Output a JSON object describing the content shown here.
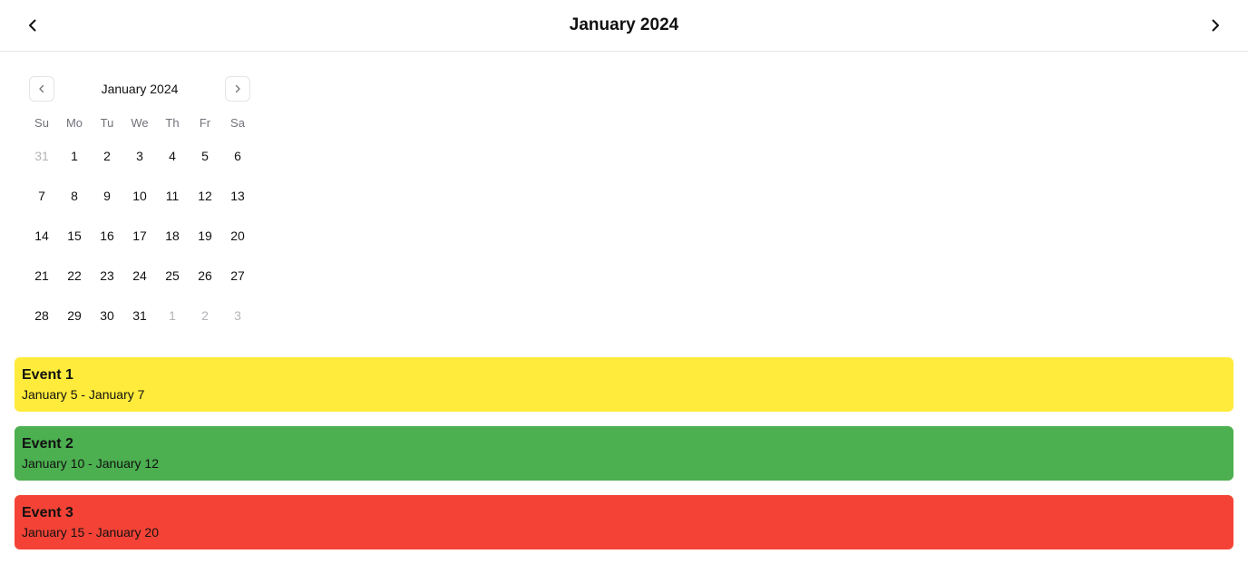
{
  "header": {
    "title": "January 2024",
    "prev_icon": "chevron-left-icon",
    "next_icon": "chevron-right-icon"
  },
  "mini_calendar": {
    "title": "January 2024",
    "weekdays": [
      "Su",
      "Mo",
      "Tu",
      "We",
      "Th",
      "Fr",
      "Sa"
    ],
    "selected_day": "5",
    "weeks": [
      [
        {
          "d": "31",
          "out": true
        },
        {
          "d": "1"
        },
        {
          "d": "2"
        },
        {
          "d": "3"
        },
        {
          "d": "4"
        },
        {
          "d": "5",
          "sel": true
        },
        {
          "d": "6"
        }
      ],
      [
        {
          "d": "7"
        },
        {
          "d": "8"
        },
        {
          "d": "9"
        },
        {
          "d": "10"
        },
        {
          "d": "11"
        },
        {
          "d": "12"
        },
        {
          "d": "13"
        }
      ],
      [
        {
          "d": "14"
        },
        {
          "d": "15"
        },
        {
          "d": "16"
        },
        {
          "d": "17"
        },
        {
          "d": "18"
        },
        {
          "d": "19"
        },
        {
          "d": "20"
        }
      ],
      [
        {
          "d": "21"
        },
        {
          "d": "22"
        },
        {
          "d": "23"
        },
        {
          "d": "24"
        },
        {
          "d": "25"
        },
        {
          "d": "26"
        },
        {
          "d": "27"
        }
      ],
      [
        {
          "d": "28"
        },
        {
          "d": "29"
        },
        {
          "d": "30"
        },
        {
          "d": "31"
        },
        {
          "d": "1",
          "out": true
        },
        {
          "d": "2",
          "out": true
        },
        {
          "d": "3",
          "out": true
        }
      ]
    ]
  },
  "events": [
    {
      "title": "Event 1",
      "range": "January 5 - January 7",
      "color": "#ffeb3b"
    },
    {
      "title": "Event 2",
      "range": "January 10 - January 12",
      "color": "#4caf50"
    },
    {
      "title": "Event 3",
      "range": "January 15 - January 20",
      "color": "#f44336"
    }
  ]
}
